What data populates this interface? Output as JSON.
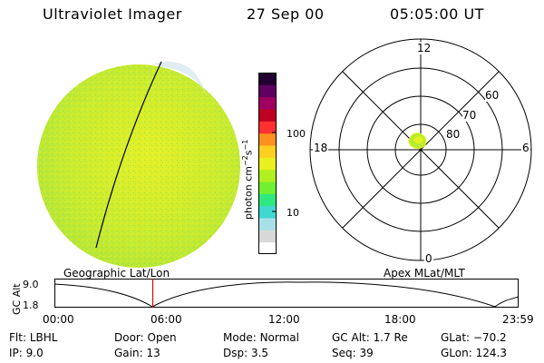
{
  "header": {
    "title": "Ultraviolet Imager",
    "date": "27 Sep 00",
    "time": "05:05:00 UT"
  },
  "colorbar": {
    "unit_label": "photon cm",
    "unit_sup1": "−2",
    "unit_mid": "s",
    "unit_sup2": "−1",
    "ticks": [
      "100",
      "10"
    ],
    "colors": [
      "#ffffff",
      "#d8d8d8",
      "#a8e0e8",
      "#40d8d0",
      "#30e880",
      "#70f030",
      "#b0f020",
      "#e8f020",
      "#ffd020",
      "#ff9020",
      "#ff3030",
      "#c00020",
      "#a00060",
      "#600060",
      "#200030"
    ]
  },
  "polar": {
    "mlt_labels": {
      "top": "12",
      "left": "18",
      "right": "6",
      "bottom": "0"
    },
    "lat_labels": [
      "60",
      "70",
      "80"
    ]
  },
  "labels": {
    "left_caption": "Geographic Lat/Lon",
    "right_caption": "Apex MLat/MLT",
    "axis_label": "GC Alt",
    "alt_max": "9.0",
    "alt_min": "1.8",
    "time_ticks": [
      "00:00",
      "06:00",
      "12:00",
      "18:00",
      "23:59"
    ]
  },
  "info": {
    "row1": [
      {
        "key": "Flt:",
        "val": "LBHL"
      },
      {
        "key": "Door:",
        "val": "Open"
      },
      {
        "key": "Mode:",
        "val": "Normal"
      },
      {
        "key": "GC Alt:",
        "val": "1.7 Re"
      },
      {
        "key": "GLat:",
        "val": "−70.2"
      }
    ],
    "row2": [
      {
        "key": "IP:",
        "val": "9.0"
      },
      {
        "key": "Gain:",
        "val": "13"
      },
      {
        "key": "Dsp:",
        "val": "3.5"
      },
      {
        "key": "Seq:",
        "val": "39"
      },
      {
        "key": "GLon:",
        "val": "124.3"
      }
    ]
  },
  "chart_data": {
    "type": "line",
    "xlabel": "",
    "ylabel": "GC Alt",
    "xlim": [
      "00:00",
      "23:59"
    ],
    "ylim": [
      1.8,
      9.0
    ],
    "current_time": "05:05"
  }
}
